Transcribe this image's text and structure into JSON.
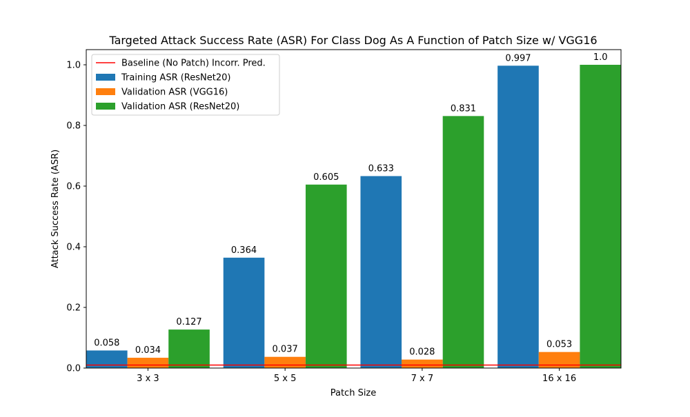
{
  "chart_data": {
    "type": "bar",
    "title": "Targeted Attack Success Rate (ASR) For Class Dog As A Function of Patch Size w/ VGG16",
    "xlabel": "Patch Size",
    "ylabel": "Attack Success Rate (ASR)",
    "categories": [
      "3 x 3",
      "5 x 5",
      "7 x 7",
      "16 x 16"
    ],
    "series": [
      {
        "name": "Training ASR (ResNet20)",
        "color": "#1f77b4",
        "values": [
          0.058,
          0.364,
          0.633,
          0.997
        ],
        "labels": [
          "0.058",
          "0.364",
          "0.633",
          "0.997"
        ]
      },
      {
        "name": "Validation ASR (VGG16)",
        "color": "#ff7f0e",
        "values": [
          0.034,
          0.037,
          0.028,
          0.053
        ],
        "labels": [
          "0.034",
          "0.037",
          "0.028",
          "0.053"
        ]
      },
      {
        "name": "Validation ASR (ResNet20)",
        "color": "#2ca02c",
        "values": [
          0.127,
          0.605,
          0.831,
          1.0
        ],
        "labels": [
          "0.127",
          "0.605",
          "0.831",
          "1.0"
        ]
      }
    ],
    "baseline": {
      "name": "Baseline (No Patch) Incorr. Pred.",
      "value": 0.01,
      "color": "#ff0000"
    },
    "ylim": [
      0,
      1.05
    ],
    "yticks": [
      0.0,
      0.2,
      0.4,
      0.6,
      0.8,
      1.0
    ],
    "ytick_labels": [
      "0.0",
      "0.2",
      "0.4",
      "0.6",
      "0.8",
      "1.0"
    ],
    "grid": false,
    "legend_position": "top-left"
  }
}
